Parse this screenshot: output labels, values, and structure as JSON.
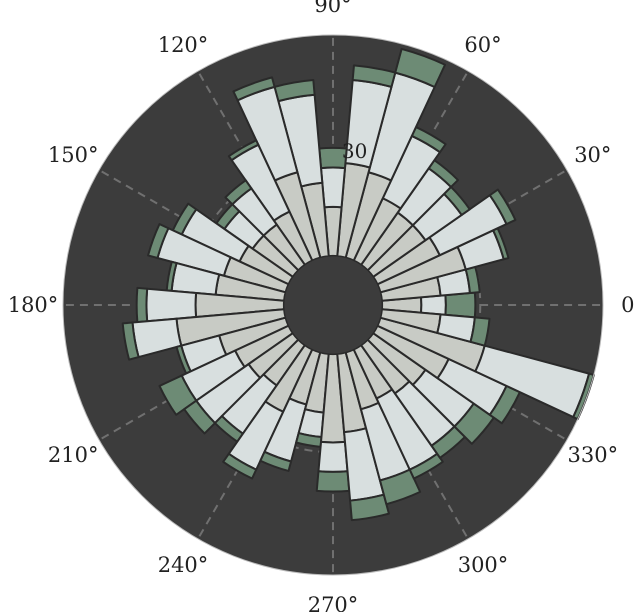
{
  "chart_data": {
    "type": "bar",
    "subtype": "polar-stacked-bar",
    "title": "",
    "angular_tick_labels": [
      "0°",
      "30°",
      "60°",
      "90°",
      "120°",
      "150°",
      "180°",
      "210°",
      "240°",
      "270°",
      "300°",
      "330°"
    ],
    "radial_tick_labels": [
      "30"
    ],
    "radial_label_angle_deg": 82,
    "r_max": 55,
    "r_ticks": [
      10,
      20,
      30
    ],
    "inner_hole": 10,
    "grid": true,
    "direction": "counterclockwise",
    "zero_location": "E",
    "bin_width_deg": 10,
    "theta_deg": [
      0,
      10,
      20,
      30,
      40,
      50,
      60,
      70,
      80,
      90,
      100,
      110,
      120,
      130,
      140,
      150,
      160,
      170,
      180,
      190,
      200,
      210,
      220,
      230,
      240,
      250,
      260,
      270,
      280,
      290,
      300,
      310,
      320,
      330,
      340,
      350
    ],
    "series": [
      {
        "values": [
          8,
          12,
          18,
          14,
          13,
          13,
          14,
          18,
          19,
          10,
          15,
          18,
          11,
          10,
          10,
          11,
          13,
          14,
          18,
          22,
          14,
          12,
          11,
          10,
          14,
          11,
          12,
          18,
          16,
          12,
          11,
          12,
          13,
          16,
          22,
          12
        ]
      },
      {
        "values": [
          5,
          6,
          8,
          15,
          9,
          11,
          14,
          21,
          17,
          8,
          18,
          18,
          15,
          9,
          7,
          13,
          14,
          9,
          10,
          9,
          8,
          12,
          13,
          12,
          13,
          12,
          5,
          6,
          14,
          15,
          16,
          13,
          12,
          13,
          22,
          7
        ]
      },
      {
        "values": [
          6,
          2,
          1,
          2,
          2,
          2,
          2,
          5,
          3,
          4,
          3,
          2,
          1,
          2,
          2,
          2,
          2,
          1,
          2,
          2,
          1,
          5,
          3,
          2,
          2,
          2,
          2,
          4,
          4,
          5,
          2,
          3,
          5,
          3,
          1,
          3
        ]
      }
    ],
    "colors": {
      "background": "#3c3c3c",
      "grid": "#707070",
      "edge": "#2a2a2a",
      "series": [
        "#c8cbc5",
        "#d8dfdf",
        "#6d8b75"
      ]
    }
  }
}
